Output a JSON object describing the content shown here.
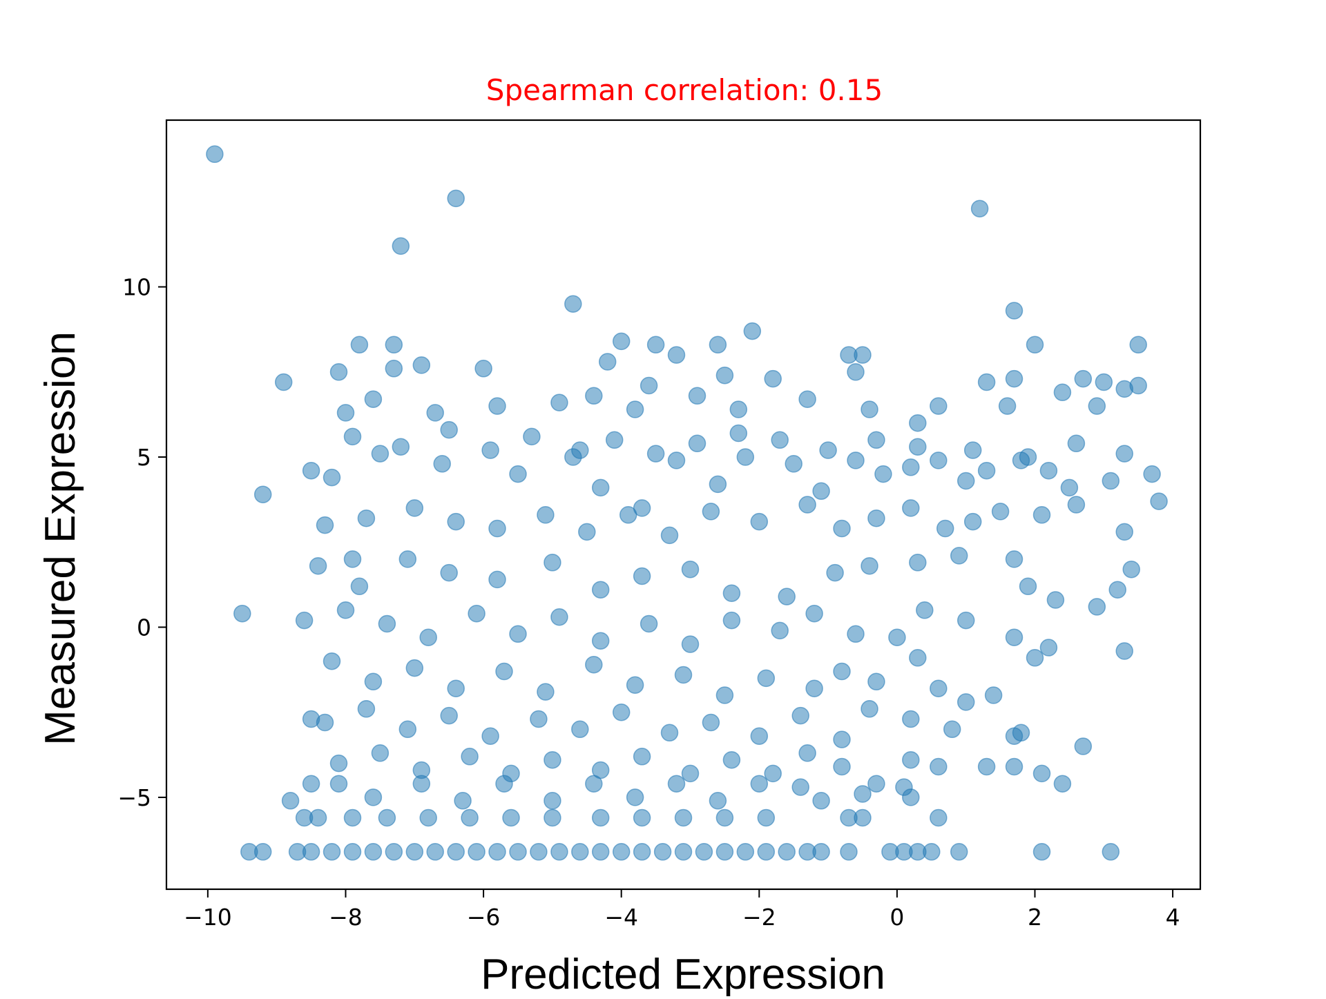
{
  "chart_data": {
    "type": "scatter",
    "title": "Spearman correlation: 0.15",
    "title_color": "#ff0000",
    "xlabel": "Predicted Expression",
    "ylabel": "Measured Expression",
    "xlim": [
      -10.6,
      4.4
    ],
    "ylim": [
      -7.7,
      14.9
    ],
    "xticks": [
      -10,
      -8,
      -6,
      -4,
      -2,
      0,
      2,
      4
    ],
    "xtick_labels": [
      "−10",
      "−8",
      "−6",
      "−4",
      "−2",
      "0",
      "2",
      "4"
    ],
    "yticks": [
      -5,
      0,
      5,
      10
    ],
    "ytick_labels": [
      "−5",
      "0",
      "5",
      "10"
    ],
    "grid": false,
    "legend": "none",
    "marker_color": "#1f77b4",
    "marker_alpha": 0.5,
    "series": [
      {
        "points": [
          [
            -9.9,
            13.9
          ],
          [
            -6.4,
            12.6
          ],
          [
            -7.2,
            11.2
          ],
          [
            1.2,
            12.3
          ],
          [
            -4.7,
            9.5
          ],
          [
            1.7,
            9.3
          ],
          [
            -8.9,
            7.2
          ],
          [
            -2.1,
            8.7
          ],
          [
            -7.8,
            8.3
          ],
          [
            -7.3,
            8.3
          ],
          [
            -4.0,
            8.4
          ],
          [
            -3.5,
            8.3
          ],
          [
            -3.2,
            8.0
          ],
          [
            -2.6,
            8.3
          ],
          [
            -0.7,
            8.0
          ],
          [
            -0.5,
            8.0
          ],
          [
            2.0,
            8.3
          ],
          [
            3.5,
            8.3
          ],
          [
            -8.1,
            7.5
          ],
          [
            -7.3,
            7.6
          ],
          [
            -6.9,
            7.7
          ],
          [
            -6.0,
            7.6
          ],
          [
            -4.2,
            7.8
          ],
          [
            -3.6,
            7.1
          ],
          [
            -2.5,
            7.4
          ],
          [
            -1.8,
            7.3
          ],
          [
            -0.6,
            7.5
          ],
          [
            1.3,
            7.2
          ],
          [
            1.7,
            7.3
          ],
          [
            2.7,
            7.3
          ],
          [
            3.0,
            7.2
          ],
          [
            3.3,
            7.0
          ],
          [
            3.5,
            7.1
          ],
          [
            -8.5,
            4.6
          ],
          [
            -9.2,
            3.9
          ],
          [
            -9.5,
            0.4
          ],
          [
            -8.6,
            0.2
          ],
          [
            -8.5,
            -2.7
          ],
          [
            -8.5,
            -4.6
          ],
          [
            -8.8,
            -5.1
          ],
          [
            -8.6,
            -5.6
          ],
          [
            -8.0,
            6.3
          ],
          [
            -7.6,
            6.7
          ],
          [
            -6.7,
            6.3
          ],
          [
            -5.8,
            6.5
          ],
          [
            -4.9,
            6.6
          ],
          [
            -4.4,
            6.8
          ],
          [
            -3.8,
            6.4
          ],
          [
            -2.9,
            6.8
          ],
          [
            -2.3,
            6.4
          ],
          [
            -1.3,
            6.7
          ],
          [
            -0.4,
            6.4
          ],
          [
            0.3,
            6.0
          ],
          [
            0.6,
            6.5
          ],
          [
            1.6,
            6.5
          ],
          [
            2.4,
            6.9
          ],
          [
            2.9,
            6.5
          ],
          [
            -8.2,
            4.4
          ],
          [
            -7.9,
            2.0
          ],
          [
            -7.5,
            5.1
          ],
          [
            -6.6,
            4.8
          ],
          [
            -5.5,
            4.5
          ],
          [
            -4.6,
            5.2
          ],
          [
            -4.3,
            4.1
          ],
          [
            -3.7,
            3.5
          ],
          [
            -3.2,
            4.9
          ],
          [
            -2.6,
            4.2
          ],
          [
            -2.2,
            5.0
          ],
          [
            -1.5,
            4.8
          ],
          [
            -1.1,
            4.0
          ],
          [
            -0.6,
            4.9
          ],
          [
            -0.2,
            4.5
          ],
          [
            0.2,
            4.7
          ],
          [
            0.6,
            4.9
          ],
          [
            1.0,
            4.3
          ],
          [
            1.3,
            4.6
          ],
          [
            1.8,
            4.9
          ],
          [
            2.2,
            4.6
          ],
          [
            2.5,
            4.1
          ],
          [
            3.1,
            4.3
          ],
          [
            3.7,
            4.5
          ],
          [
            -8.3,
            3.0
          ],
          [
            -7.7,
            3.2
          ],
          [
            -7.0,
            3.5
          ],
          [
            -6.4,
            3.1
          ],
          [
            -5.8,
            2.9
          ],
          [
            -5.1,
            3.3
          ],
          [
            -4.5,
            2.8
          ],
          [
            -3.9,
            3.3
          ],
          [
            -3.3,
            2.7
          ],
          [
            -2.7,
            3.4
          ],
          [
            -2.0,
            3.1
          ],
          [
            -1.3,
            3.6
          ],
          [
            -0.8,
            2.9
          ],
          [
            -0.3,
            3.2
          ],
          [
            0.2,
            3.5
          ],
          [
            0.7,
            2.9
          ],
          [
            1.1,
            3.1
          ],
          [
            1.5,
            3.4
          ],
          [
            2.1,
            3.3
          ],
          [
            2.6,
            3.6
          ],
          [
            3.3,
            2.8
          ],
          [
            3.8,
            3.7
          ],
          [
            -8.4,
            1.8
          ],
          [
            -7.8,
            1.2
          ],
          [
            -7.1,
            2.0
          ],
          [
            -6.5,
            1.6
          ],
          [
            -5.8,
            1.4
          ],
          [
            -5.0,
            1.9
          ],
          [
            -4.3,
            1.1
          ],
          [
            -3.7,
            1.5
          ],
          [
            -3.0,
            1.7
          ],
          [
            -2.4,
            1.0
          ],
          [
            -1.6,
            0.9
          ],
          [
            -0.9,
            1.6
          ],
          [
            -0.4,
            1.8
          ],
          [
            0.3,
            1.9
          ],
          [
            0.9,
            2.1
          ],
          [
            1.7,
            2.0
          ],
          [
            1.9,
            1.2
          ],
          [
            2.3,
            0.8
          ],
          [
            2.9,
            0.6
          ],
          [
            3.2,
            1.1
          ],
          [
            3.4,
            1.7
          ],
          [
            -8.0,
            0.5
          ],
          [
            -7.4,
            0.1
          ],
          [
            -6.8,
            -0.3
          ],
          [
            -6.1,
            0.4
          ],
          [
            -5.5,
            -0.2
          ],
          [
            -4.9,
            0.3
          ],
          [
            -4.3,
            -0.4
          ],
          [
            -3.6,
            0.1
          ],
          [
            -3.0,
            -0.5
          ],
          [
            -2.4,
            0.2
          ],
          [
            -1.7,
            -0.1
          ],
          [
            -1.2,
            0.4
          ],
          [
            -0.6,
            -0.2
          ],
          [
            0.0,
            -0.3
          ],
          [
            0.4,
            0.5
          ],
          [
            1.0,
            0.2
          ],
          [
            1.7,
            -0.3
          ],
          [
            2.2,
            -0.6
          ],
          [
            3.3,
            -0.7
          ],
          [
            -8.2,
            -1.0
          ],
          [
            -7.6,
            -1.6
          ],
          [
            -7.0,
            -1.2
          ],
          [
            -6.4,
            -1.8
          ],
          [
            -5.7,
            -1.3
          ],
          [
            -5.1,
            -1.9
          ],
          [
            -4.4,
            -1.1
          ],
          [
            -3.8,
            -1.7
          ],
          [
            -3.1,
            -1.4
          ],
          [
            -2.5,
            -2.0
          ],
          [
            -1.9,
            -1.5
          ],
          [
            -1.2,
            -1.8
          ],
          [
            -0.8,
            -1.3
          ],
          [
            -0.3,
            -1.6
          ],
          [
            0.3,
            -0.9
          ],
          [
            0.6,
            -1.8
          ],
          [
            1.0,
            -2.2
          ],
          [
            1.4,
            -2.0
          ],
          [
            2.0,
            -0.9
          ],
          [
            -8.3,
            -2.8
          ],
          [
            -7.7,
            -2.4
          ],
          [
            -7.1,
            -3.0
          ],
          [
            -6.5,
            -2.6
          ],
          [
            -5.9,
            -3.2
          ],
          [
            -5.2,
            -2.7
          ],
          [
            -4.6,
            -3.0
          ],
          [
            -4.0,
            -2.5
          ],
          [
            -3.3,
            -3.1
          ],
          [
            -2.7,
            -2.8
          ],
          [
            -2.0,
            -3.2
          ],
          [
            -1.4,
            -2.6
          ],
          [
            -0.8,
            -3.3
          ],
          [
            -0.4,
            -2.4
          ],
          [
            0.2,
            -2.7
          ],
          [
            0.8,
            -3.0
          ],
          [
            1.7,
            -3.2
          ],
          [
            1.8,
            -3.1
          ],
          [
            2.7,
            -3.5
          ],
          [
            -8.1,
            -4.0
          ],
          [
            -7.5,
            -3.7
          ],
          [
            -6.9,
            -4.2
          ],
          [
            -6.2,
            -3.8
          ],
          [
            -5.6,
            -4.3
          ],
          [
            -5.0,
            -3.9
          ],
          [
            -4.3,
            -4.2
          ],
          [
            -3.7,
            -3.8
          ],
          [
            -3.0,
            -4.3
          ],
          [
            -2.4,
            -3.9
          ],
          [
            -1.8,
            -4.3
          ],
          [
            -1.3,
            -3.7
          ],
          [
            -0.8,
            -4.1
          ],
          [
            -0.3,
            -4.6
          ],
          [
            0.2,
            -3.9
          ],
          [
            0.6,
            -4.1
          ],
          [
            1.3,
            -4.1
          ],
          [
            1.7,
            -4.1
          ],
          [
            2.1,
            -4.3
          ],
          [
            2.4,
            -4.6
          ],
          [
            -8.1,
            -4.6
          ],
          [
            -7.6,
            -5.0
          ],
          [
            -6.9,
            -4.6
          ],
          [
            -6.3,
            -5.1
          ],
          [
            -5.7,
            -4.6
          ],
          [
            -5.0,
            -5.1
          ],
          [
            -4.4,
            -4.6
          ],
          [
            -3.8,
            -5.0
          ],
          [
            -3.2,
            -4.6
          ],
          [
            -2.6,
            -5.1
          ],
          [
            -2.0,
            -4.6
          ],
          [
            -1.4,
            -4.7
          ],
          [
            -1.1,
            -5.1
          ],
          [
            -0.5,
            -4.9
          ],
          [
            0.1,
            -4.7
          ],
          [
            0.2,
            -5.0
          ],
          [
            0.6,
            -5.6
          ],
          [
            -8.4,
            -5.6
          ],
          [
            -7.9,
            -5.6
          ],
          [
            -7.4,
            -5.6
          ],
          [
            -6.8,
            -5.6
          ],
          [
            -6.2,
            -5.6
          ],
          [
            -5.6,
            -5.6
          ],
          [
            -5.0,
            -5.6
          ],
          [
            -4.3,
            -5.6
          ],
          [
            -3.7,
            -5.6
          ],
          [
            -3.1,
            -5.6
          ],
          [
            -2.5,
            -5.6
          ],
          [
            -1.9,
            -5.6
          ],
          [
            -0.7,
            -5.6
          ],
          [
            -0.5,
            -5.6
          ],
          [
            -9.4,
            -6.6
          ],
          [
            -9.2,
            -6.6
          ],
          [
            -8.7,
            -6.6
          ],
          [
            -8.5,
            -6.6
          ],
          [
            -8.2,
            -6.6
          ],
          [
            -7.9,
            -6.6
          ],
          [
            -7.6,
            -6.6
          ],
          [
            -7.3,
            -6.6
          ],
          [
            -7.0,
            -6.6
          ],
          [
            -6.7,
            -6.6
          ],
          [
            -6.4,
            -6.6
          ],
          [
            -6.1,
            -6.6
          ],
          [
            -5.8,
            -6.6
          ],
          [
            -5.5,
            -6.6
          ],
          [
            -5.2,
            -6.6
          ],
          [
            -4.9,
            -6.6
          ],
          [
            -4.6,
            -6.6
          ],
          [
            -4.3,
            -6.6
          ],
          [
            -4.0,
            -6.6
          ],
          [
            -3.7,
            -6.6
          ],
          [
            -3.4,
            -6.6
          ],
          [
            -3.1,
            -6.6
          ],
          [
            -2.8,
            -6.6
          ],
          [
            -2.5,
            -6.6
          ],
          [
            -2.2,
            -6.6
          ],
          [
            -1.9,
            -6.6
          ],
          [
            -1.6,
            -6.6
          ],
          [
            -1.3,
            -6.6
          ],
          [
            -1.1,
            -6.6
          ],
          [
            -0.7,
            -6.6
          ],
          [
            -0.1,
            -6.6
          ],
          [
            0.1,
            -6.6
          ],
          [
            0.3,
            -6.6
          ],
          [
            0.5,
            -6.6
          ],
          [
            0.9,
            -6.6
          ],
          [
            2.1,
            -6.6
          ],
          [
            3.1,
            -6.6
          ],
          [
            -7.9,
            5.6
          ],
          [
            -7.2,
            5.3
          ],
          [
            -6.5,
            5.8
          ],
          [
            -5.9,
            5.2
          ],
          [
            -5.3,
            5.6
          ],
          [
            -4.7,
            5.0
          ],
          [
            -4.1,
            5.5
          ],
          [
            -3.5,
            5.1
          ],
          [
            -2.9,
            5.4
          ],
          [
            -2.3,
            5.7
          ],
          [
            -1.7,
            5.5
          ],
          [
            -1.0,
            5.2
          ],
          [
            -0.3,
            5.5
          ],
          [
            0.3,
            5.3
          ],
          [
            1.1,
            5.2
          ],
          [
            1.9,
            5.0
          ],
          [
            2.6,
            5.4
          ],
          [
            3.3,
            5.1
          ]
        ]
      }
    ]
  }
}
